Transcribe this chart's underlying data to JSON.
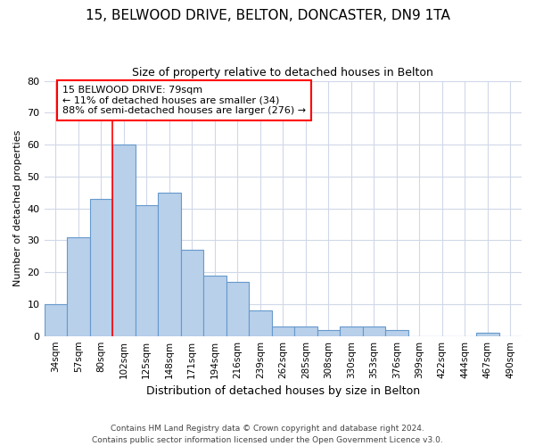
{
  "title1": "15, BELWOOD DRIVE, BELTON, DONCASTER, DN9 1TA",
  "title2": "Size of property relative to detached houses in Belton",
  "xlabel": "Distribution of detached houses by size in Belton",
  "ylabel": "Number of detached properties",
  "categories": [
    "34sqm",
    "57sqm",
    "80sqm",
    "102sqm",
    "125sqm",
    "148sqm",
    "171sqm",
    "194sqm",
    "216sqm",
    "239sqm",
    "262sqm",
    "285sqm",
    "308sqm",
    "330sqm",
    "353sqm",
    "376sqm",
    "399sqm",
    "422sqm",
    "444sqm",
    "467sqm",
    "490sqm"
  ],
  "values": [
    10,
    31,
    43,
    60,
    41,
    45,
    27,
    19,
    17,
    8,
    3,
    3,
    2,
    3,
    3,
    2,
    0,
    0,
    0,
    1,
    0
  ],
  "bar_color": "#b8d0ea",
  "bar_edge_color": "#6699cc",
  "redline_index": 2,
  "redline_label": "15 BELWOOD DRIVE: 79sqm",
  "annotation_line1": "← 11% of detached houses are smaller (34)",
  "annotation_line2": "88% of semi-detached houses are larger (276) →",
  "annotation_box_color": "white",
  "annotation_box_edge": "red",
  "ylim": [
    0,
    80
  ],
  "yticks": [
    0,
    10,
    20,
    30,
    40,
    50,
    60,
    70,
    80
  ],
  "footnote1": "Contains HM Land Registry data © Crown copyright and database right 2024.",
  "footnote2": "Contains public sector information licensed under the Open Government Licence v3.0.",
  "bg_color": "#ffffff",
  "grid_color": "#d0d8e8",
  "title1_fontsize": 11,
  "title2_fontsize": 9,
  "ylabel_fontsize": 8,
  "xlabel_fontsize": 9,
  "tick_fontsize": 7.5,
  "annot_fontsize": 8,
  "footnote_fontsize": 6.5
}
